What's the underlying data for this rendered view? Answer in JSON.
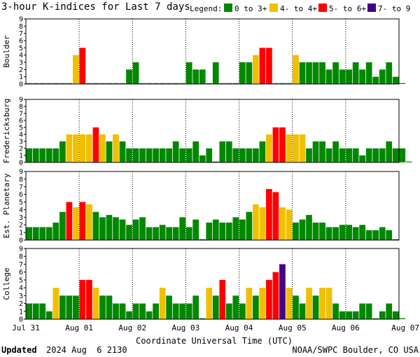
{
  "title": "3-hour K-indices for Last 7 days",
  "legend": {
    "label": "Legend:",
    "items": [
      {
        "text": "0 to 3+",
        "color": "#008800"
      },
      {
        "text": "4- to 4+",
        "color": "#f0c000"
      },
      {
        "text": "5- to 6+",
        "color": "#ff0000"
      },
      {
        "text": "7- to 9",
        "color": "#440088"
      }
    ]
  },
  "footer": {
    "updated_label": "Updated",
    "updated_value": "2024 Aug  6 2130",
    "source": "NOAA/SWPC Boulder, CO USA"
  },
  "chart_data": {
    "type": "bar",
    "x_label": "Coordinate Universal Time (UTC)",
    "x_tick_labels": [
      "Jul 31",
      "Aug 01",
      "Aug 02",
      "Aug 03",
      "Aug 04",
      "Aug 05",
      "Aug 06",
      "Aug 07"
    ],
    "ylim": [
      0,
      9
    ],
    "y_ticks": [
      "0",
      "1",
      "2",
      "3",
      "4",
      "5",
      "6",
      "7",
      "8",
      "9"
    ],
    "bins_per_day": 8,
    "color_scale": [
      {
        "max": 3.9,
        "color": "#008800"
      },
      {
        "max": 4.9,
        "color": "#f0c000"
      },
      {
        "max": 6.9,
        "color": "#ff0000"
      },
      {
        "max": 9,
        "color": "#440088"
      }
    ],
    "panels": [
      {
        "station": "Boulder",
        "values": [
          0,
          0,
          0,
          0,
          0,
          0,
          0,
          4,
          5,
          0,
          0,
          0,
          0,
          0,
          0,
          2,
          3,
          0,
          0,
          0,
          0,
          0,
          0,
          0,
          3,
          2,
          2,
          0,
          3,
          0,
          0,
          0,
          3,
          3,
          4,
          5,
          5,
          0,
          0,
          0,
          4,
          3,
          3,
          3,
          3,
          2,
          3,
          2,
          2,
          3,
          2,
          3,
          1,
          2,
          3,
          1,
          0
        ]
      },
      {
        "station": "Fredericksburg",
        "values": [
          2,
          2,
          2,
          2,
          2,
          3,
          4,
          4,
          4,
          4,
          5,
          4,
          3,
          4,
          3,
          2,
          2,
          2,
          2,
          2,
          2,
          2,
          3,
          2,
          2,
          3,
          1,
          2,
          0,
          3,
          3,
          2,
          2,
          2,
          2,
          3,
          4,
          5,
          5,
          4,
          4,
          4,
          2,
          3,
          3,
          2,
          3,
          2,
          2,
          2,
          1,
          2,
          2,
          2,
          3,
          2,
          2,
          0
        ]
      },
      {
        "station": "Est. Planetary",
        "values": [
          1.7,
          1.7,
          1.7,
          1.7,
          2.3,
          3.7,
          5,
          4.3,
          5,
          4.7,
          3.7,
          3,
          3.3,
          3,
          2.7,
          2,
          2.7,
          3,
          1.7,
          1.7,
          2,
          1.7,
          1.7,
          3,
          1.7,
          2.7,
          0,
          2.3,
          2.7,
          2.3,
          2.3,
          3,
          2.7,
          3.7,
          4.7,
          4.3,
          6.7,
          6.3,
          4.3,
          4,
          2.3,
          2.7,
          3.3,
          2.3,
          2.3,
          1.7,
          1.7,
          2,
          2,
          1.7,
          2,
          1.3,
          1.3,
          1.7,
          1.3,
          0
        ]
      },
      {
        "station": "College",
        "values": [
          2,
          2,
          2,
          1,
          4,
          3,
          3,
          3,
          5,
          5,
          4,
          3,
          3,
          2,
          2,
          1,
          2,
          2,
          1,
          2,
          4,
          3,
          2,
          2,
          2,
          3,
          0,
          4,
          3,
          5,
          2,
          3,
          2,
          4,
          3,
          4,
          5,
          6,
          7,
          4,
          3,
          2,
          4,
          3,
          4,
          4,
          2,
          1,
          1,
          1,
          2,
          2,
          0,
          1,
          2,
          1,
          0
        ]
      }
    ]
  }
}
